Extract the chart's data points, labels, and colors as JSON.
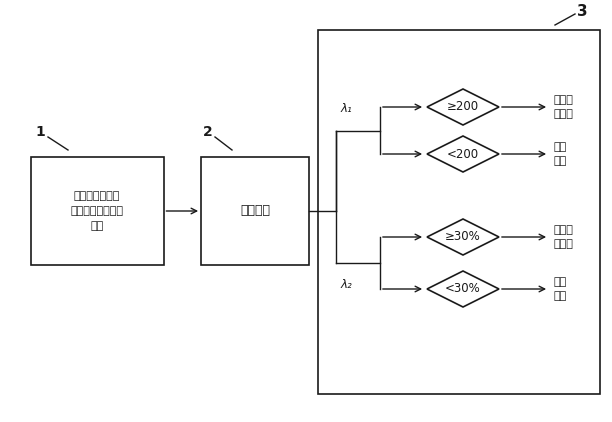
{
  "bg_color": "#ffffff",
  "box1_text": "水煮前后直流电\n压一泄漏电流特性\n试验",
  "box2_text": "曲线拟合",
  "diamond1_text": "≥200",
  "diamond2_text": "<200",
  "diamond3_text": "≥30%",
  "diamond4_text": "<30%",
  "result1_text": "存在界\n面缺陷",
  "result2_text": "试验\n通过",
  "result3_text": "存在界\n面缺陷",
  "result4_text": "试验\n通过",
  "label1": "1",
  "label2": "2",
  "label3": "3",
  "lambda1": "λ₁",
  "lambda2": "λ₂",
  "line_color": "#1a1a1a",
  "box_edge_color": "#1a1a1a",
  "text_color": "#1a1a1a",
  "font_size": 8.5,
  "title_font_size": 9
}
